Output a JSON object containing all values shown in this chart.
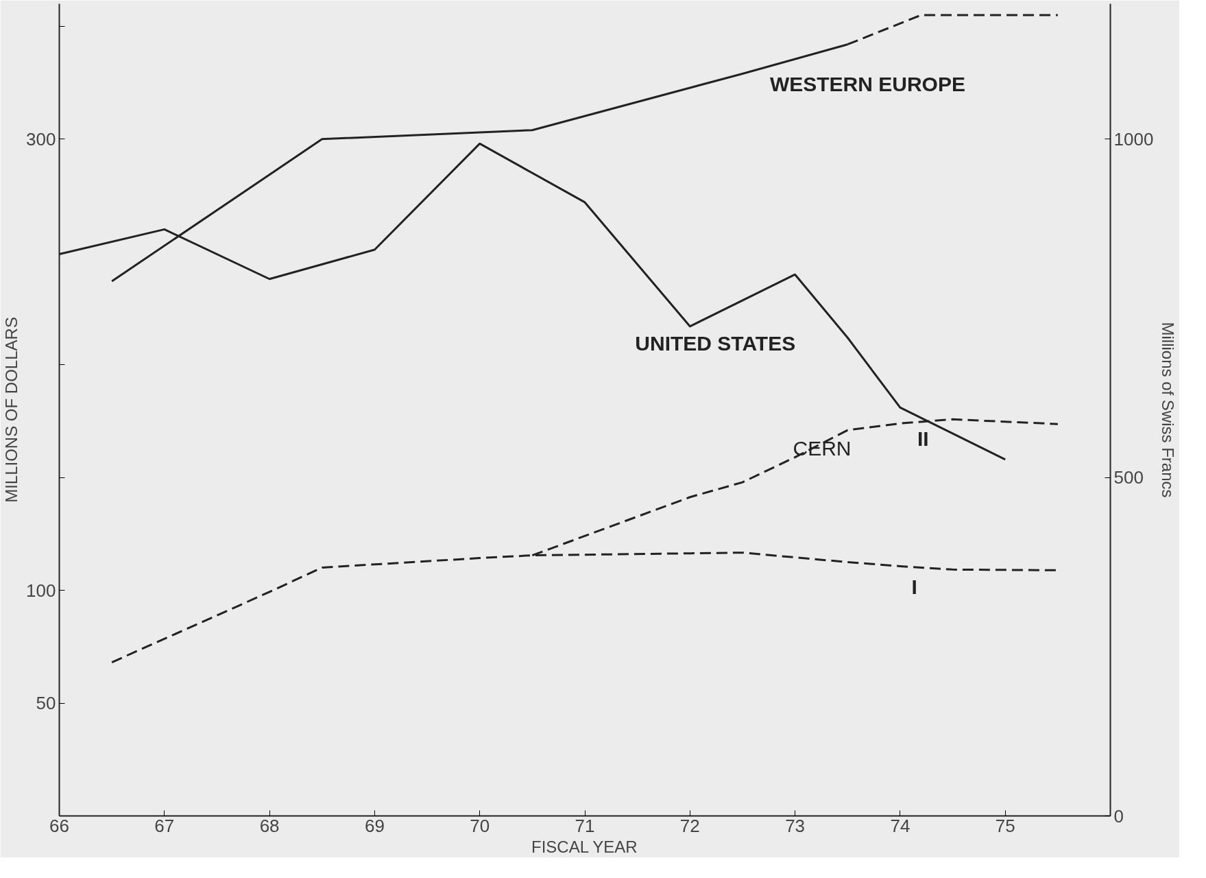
{
  "chart_data": {
    "type": "line",
    "xlabel": "FISCAL YEAR",
    "ylabel": "MILLIONS OF DOLLARS",
    "y2label": "Millions of Swiss Francs",
    "xlim": [
      66,
      76
    ],
    "xticks": [
      66,
      67,
      68,
      69,
      70,
      71,
      72,
      73,
      74,
      75
    ],
    "ylim": [
      0,
      360
    ],
    "yticks": [
      {
        "value": 50,
        "label": "50"
      },
      {
        "value": 100,
        "label": "100"
      },
      {
        "value": 150,
        "label": null
      },
      {
        "value": 200,
        "label": null
      },
      {
        "value": 300,
        "label": "300"
      },
      {
        "value": 350,
        "label": null
      }
    ],
    "y2lim": [
      0,
      1200
    ],
    "y2ticks": [
      0,
      500,
      1000
    ],
    "grid": false,
    "legend": false,
    "marker": "none",
    "series": [
      {
        "name": "UNITED STATES",
        "color": "#222222",
        "line_style": "solid",
        "x": [
          66,
          67,
          68,
          69,
          70,
          71,
          72,
          73,
          73.5,
          74,
          75
        ],
        "values": [
          249,
          260,
          238,
          251,
          298,
          272,
          217,
          240,
          212,
          181,
          158
        ]
      },
      {
        "name": "WESTERN EUROPE",
        "color": "#222222",
        "line_style": "solid",
        "x": [
          66.5,
          68.5,
          70.5,
          72.5,
          73.5
        ],
        "values": [
          237,
          300,
          304,
          329,
          342
        ]
      },
      {
        "color": "#222222",
        "line_style": "dashed",
        "x": [
          73.5,
          74.2,
          74.5,
          75.5
        ],
        "values": [
          342,
          355,
          355,
          355
        ]
      },
      {
        "name": "II",
        "color": "#222222",
        "line_style": "dashed",
        "axis": "y2",
        "x": [
          70.5,
          72,
          72.5,
          73,
          73.5,
          74,
          74.5,
          75.5
        ],
        "values": [
          385,
          471,
          493,
          530,
          570,
          580,
          586,
          579
        ]
      },
      {
        "name": "I",
        "color": "#222222",
        "line_style": "dashed",
        "axis": "y2",
        "x": [
          66.5,
          68,
          68.5,
          70,
          70.5,
          72,
          72.5,
          73.5,
          74,
          74.5,
          75.5
        ],
        "values": [
          227,
          331,
          367,
          381,
          385,
          388,
          389,
          375,
          369,
          364,
          363
        ]
      }
    ],
    "annotations": [
      "CERN"
    ]
  }
}
